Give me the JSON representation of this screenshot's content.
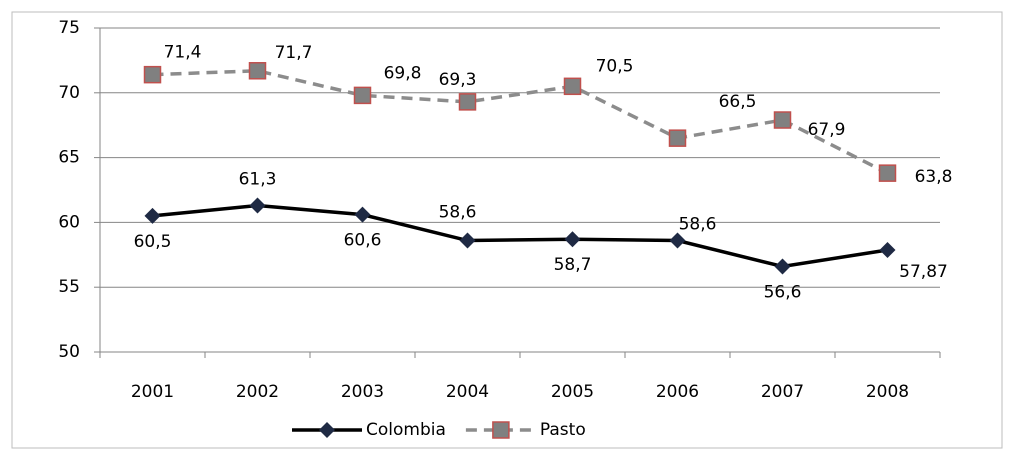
{
  "chart_data": {
    "type": "line",
    "categories": [
      "2001",
      "2002",
      "2003",
      "2004",
      "2005",
      "2006",
      "2007",
      "2008"
    ],
    "series": [
      {
        "name": "Colombia",
        "color": "#000000",
        "marker": "diamond",
        "marker_color": "#1f2a44",
        "dashed": false,
        "values": [
          60.5,
          61.3,
          60.6,
          58.6,
          58.7,
          58.6,
          56.6,
          57.87
        ],
        "value_labels": [
          "60,5",
          "61,3",
          "60,6",
          "58,6",
          "58,7",
          "58,6",
          "56,6",
          "57,87"
        ]
      },
      {
        "name": "Pasto",
        "color": "#8c8c8c",
        "marker": "square",
        "marker_color": "#808080",
        "marker_edge": "#c0504d",
        "dashed": true,
        "values": [
          71.4,
          71.7,
          69.8,
          69.3,
          70.5,
          66.5,
          67.9,
          63.8
        ],
        "value_labels": [
          "71,4",
          "71,7",
          "69,8",
          "69,3",
          "70,5",
          "66,5",
          "67,9",
          "63,8"
        ]
      }
    ],
    "ylim": [
      50,
      75
    ],
    "yticks": [
      50,
      55,
      60,
      65,
      70,
      75
    ],
    "grid": true,
    "legend": "bottom"
  }
}
